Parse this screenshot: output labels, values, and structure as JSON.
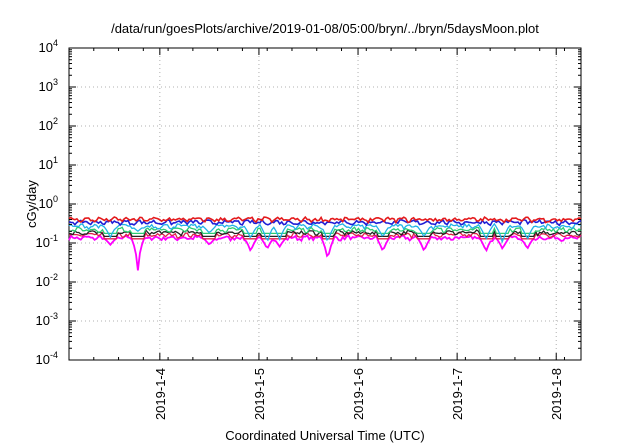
{
  "chart_data": {
    "type": "line",
    "title": "/data/run/goesPlots/archive/2019-01-08/05:00/bryn/../bryn/5daysMoon.plot",
    "xlabel": "Coordinated Universal Time (UTC)",
    "ylabel": "cGy/day",
    "yscale": "log",
    "ylim": [
      0.0001,
      10000
    ],
    "y_ticks": [
      {
        "value": 0.0001,
        "base": "10",
        "exp": "-4"
      },
      {
        "value": 0.001,
        "base": "10",
        "exp": "-3"
      },
      {
        "value": 0.01,
        "base": "10",
        "exp": "-2"
      },
      {
        "value": 0.1,
        "base": "10",
        "exp": "-1"
      },
      {
        "value": 1,
        "base": "10",
        "exp": "0"
      },
      {
        "value": 10,
        "base": "10",
        "exp": "1"
      },
      {
        "value": 100,
        "base": "10",
        "exp": "2"
      },
      {
        "value": 1000,
        "base": "10",
        "exp": "3"
      },
      {
        "value": 10000,
        "base": "10",
        "exp": "4"
      }
    ],
    "xlim": [
      "2019-01-03T02:00",
      "2019-01-08T06:00"
    ],
    "x_ticks": [
      {
        "value": "2019-01-04T00:00",
        "label": "2019-1-4"
      },
      {
        "value": "2019-01-05T00:00",
        "label": "2019-1-5"
      },
      {
        "value": "2019-01-06T00:00",
        "label": "2019-1-6"
      },
      {
        "value": "2019-01-07T00:00",
        "label": "2019-1-7"
      },
      {
        "value": "2019-01-08T00:00",
        "label": "2019-1-8"
      }
    ],
    "grid": true,
    "series": [
      {
        "color": "#e41a1c",
        "base": 0.4
      },
      {
        "color": "#1f1fd6",
        "base": 0.34
      },
      {
        "color": "#20b2e6",
        "base": 0.27
      },
      {
        "color": "#2ecc71",
        "base": 0.22
      },
      {
        "color": "#222222",
        "base": 0.185
      },
      {
        "color": "#e0204a",
        "base": 0.16
      },
      {
        "color": "#ff00ff",
        "base": 0.135
      }
    ],
    "dips": [
      {
        "x": "2019-01-03T12:00",
        "magenta": 0.09,
        "cyan": 0.14
      },
      {
        "x": "2019-01-03T18:40",
        "magenta": 0.018,
        "cyan": 0.2
      },
      {
        "x": "2019-01-04T12:00",
        "magenta": 0.09,
        "cyan": 0.18
      },
      {
        "x": "2019-01-04T22:00",
        "magenta": 0.06,
        "cyan": 0.13
      },
      {
        "x": "2019-01-05T02:00",
        "magenta": 0.07,
        "cyan": 0.1
      },
      {
        "x": "2019-01-05T05:00",
        "magenta": 0.08,
        "cyan": 0.12
      },
      {
        "x": "2019-01-05T16:40",
        "magenta": 0.035,
        "cyan": 0.1
      },
      {
        "x": "2019-01-06T06:00",
        "magenta": 0.06,
        "cyan": 0.14
      },
      {
        "x": "2019-01-06T16:00",
        "magenta": 0.06,
        "cyan": 0.14
      },
      {
        "x": "2019-01-07T07:00",
        "magenta": 0.06,
        "cyan": 0.12
      },
      {
        "x": "2019-01-07T11:00",
        "magenta": 0.07,
        "cyan": 0.1
      },
      {
        "x": "2019-01-07T17:00",
        "magenta": 0.07,
        "cyan": 0.12
      }
    ]
  }
}
